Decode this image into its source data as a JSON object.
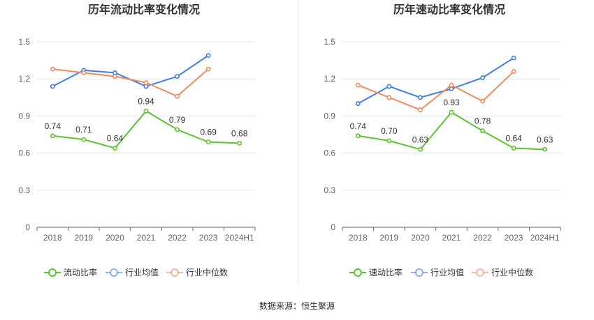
{
  "source": "数据来源：恒生聚源",
  "chart_data": [
    {
      "type": "line",
      "title": "历年流动比率变化情况",
      "categories": [
        "2018",
        "2019",
        "2020",
        "2021",
        "2022",
        "2023",
        "2024H1"
      ],
      "ylim": [
        0,
        1.5
      ],
      "yticks": [
        "0",
        "0.3",
        "0.6",
        "0.9",
        "1.2",
        "1.5"
      ],
      "grid": true,
      "legend_position": "bottom",
      "series": [
        {
          "name": "流动比率",
          "color": "#5bc42f",
          "values": [
            0.74,
            0.71,
            0.64,
            0.94,
            0.79,
            0.69,
            0.68
          ],
          "labels": [
            "0.74",
            "0.71",
            "0.64",
            "0.94",
            "0.79",
            "0.69",
            "0.68"
          ]
        },
        {
          "name": "行业均值",
          "color": "#3f7ee8",
          "values": [
            1.14,
            1.27,
            1.25,
            1.14,
            1.22,
            1.39,
            null
          ]
        },
        {
          "name": "行业中位数",
          "color": "#f28a5e",
          "values": [
            1.28,
            1.25,
            1.22,
            1.17,
            1.06,
            1.28,
            null
          ]
        }
      ]
    },
    {
      "type": "line",
      "title": "历年速动比率变化情况",
      "categories": [
        "2018",
        "2019",
        "2020",
        "2021",
        "2022",
        "2023",
        "2024H1"
      ],
      "ylim": [
        0,
        1.5
      ],
      "yticks": [
        "0",
        "0.3",
        "0.6",
        "0.9",
        "1.2",
        "1.5"
      ],
      "grid": true,
      "legend_position": "bottom",
      "series": [
        {
          "name": "速动比率",
          "color": "#5bc42f",
          "values": [
            0.74,
            0.7,
            0.63,
            0.93,
            0.78,
            0.64,
            0.63
          ],
          "labels": [
            "0.74",
            "0.70",
            "0.63",
            "0.93",
            "0.78",
            "0.64",
            "0.63"
          ]
        },
        {
          "name": "行业均值",
          "color": "#3f7ee8",
          "values": [
            1.0,
            1.14,
            1.05,
            1.12,
            1.21,
            1.37,
            null
          ]
        },
        {
          "name": "行业中位数",
          "color": "#f28a5e",
          "values": [
            1.15,
            1.05,
            0.95,
            1.15,
            1.02,
            1.26,
            null
          ]
        }
      ]
    }
  ]
}
